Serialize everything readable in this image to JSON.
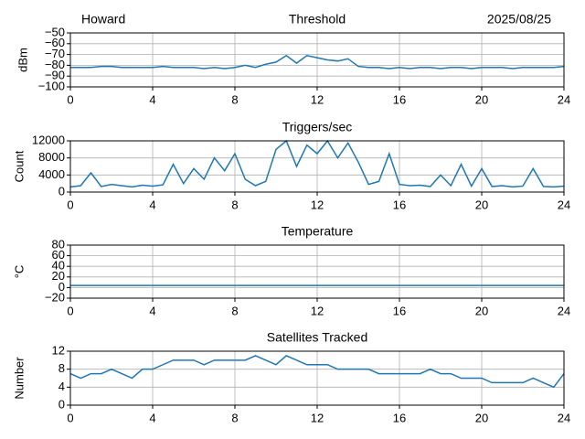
{
  "chart_data": [
    {
      "type": "line",
      "location": "Howard",
      "title": "Threshold",
      "date": "2025/08/25",
      "ylabel": "dBm",
      "color": "#1f77b4",
      "grid": true,
      "x": [
        0,
        0.5,
        1,
        1.5,
        2,
        2.5,
        3,
        3.5,
        4,
        4.5,
        5,
        5.5,
        6,
        6.5,
        7,
        7.5,
        8,
        8.5,
        9,
        9.5,
        10,
        10.5,
        11,
        11.5,
        12,
        12.5,
        13,
        13.5,
        14,
        14.5,
        15,
        15.5,
        16,
        16.5,
        17,
        17.5,
        18,
        18.5,
        19,
        19.5,
        20,
        20.5,
        21,
        21.5,
        22,
        22.5,
        23,
        23.5,
        24
      ],
      "values": [
        -82,
        -82,
        -82,
        -81,
        -81,
        -82,
        -82,
        -82,
        -82,
        -81,
        -82,
        -82,
        -82,
        -83,
        -82,
        -83,
        -82,
        -80,
        -82,
        -79,
        -77,
        -71,
        -78,
        -71,
        -73,
        -75,
        -76,
        -74,
        -81,
        -82,
        -82,
        -83,
        -82,
        -83,
        -82,
        -82,
        -83,
        -82,
        -82,
        -83,
        -82,
        -82,
        -82,
        -83,
        -82,
        -82,
        -82,
        -82,
        -81
      ],
      "xlim": [
        0,
        24
      ],
      "xticks": [
        0,
        4,
        8,
        12,
        16,
        20,
        24
      ],
      "ylim": [
        -100,
        -50
      ],
      "yticks": [
        {
          "value": -100,
          "label": "−100"
        },
        {
          "value": -90,
          "label": "−90"
        },
        {
          "value": -80,
          "label": "−80"
        },
        {
          "value": -70,
          "label": "−70"
        },
        {
          "value": -60,
          "label": "−60"
        },
        {
          "value": -50,
          "label": "−50"
        }
      ]
    },
    {
      "type": "line",
      "title": "Triggers/sec",
      "ylabel": "Count",
      "color": "#1f77b4",
      "grid": true,
      "x": [
        0,
        0.5,
        1,
        1.5,
        2,
        2.5,
        3,
        3.5,
        4,
        4.5,
        5,
        5.5,
        6,
        6.5,
        7,
        7.5,
        8,
        8.5,
        9,
        9.5,
        10,
        10.5,
        11,
        11.5,
        12,
        12.5,
        13,
        13.5,
        14,
        14.5,
        15,
        15.5,
        16,
        16.5,
        17,
        17.5,
        18,
        18.5,
        19,
        19.5,
        20,
        20.5,
        21,
        21.5,
        22,
        22.5,
        23,
        23.5,
        24
      ],
      "values": [
        1200,
        1500,
        4500,
        1300,
        1800,
        1500,
        1200,
        1600,
        1400,
        1700,
        6500,
        2000,
        5500,
        3000,
        8000,
        5000,
        9000,
        3000,
        1500,
        2500,
        10000,
        12000,
        6000,
        11000,
        9000,
        12000,
        8000,
        11500,
        7000,
        1800,
        2500,
        9000,
        1800,
        1500,
        1600,
        1300,
        4000,
        1500,
        6500,
        1400,
        5500,
        1300,
        1500,
        1200,
        1400,
        5500,
        1300,
        1200,
        1400
      ],
      "xlim": [
        0,
        24
      ],
      "xticks": [
        0,
        4,
        8,
        12,
        16,
        20,
        24
      ],
      "ylim": [
        0,
        12000
      ],
      "yticks": [
        0,
        4000,
        8000,
        12000
      ]
    },
    {
      "type": "line",
      "title": "Temperature",
      "ylabel": "°C",
      "color": "#1f77b4",
      "grid": true,
      "x": [
        0,
        24
      ],
      "values": [
        4,
        4
      ],
      "xlim": [
        0,
        24
      ],
      "xticks": [
        0,
        4,
        8,
        12,
        16,
        20,
        24
      ],
      "ylim": [
        -20,
        80
      ],
      "yticks": [
        {
          "value": -20,
          "label": "−20"
        },
        0,
        20,
        40,
        60,
        80
      ]
    },
    {
      "type": "line",
      "title": "Satellites Tracked",
      "ylabel": "Number",
      "color": "#1f77b4",
      "grid": true,
      "x": [
        0,
        0.5,
        1,
        1.5,
        2,
        2.5,
        3,
        3.5,
        4,
        4.5,
        5,
        5.5,
        6,
        6.5,
        7,
        7.5,
        8,
        8.5,
        9,
        9.5,
        10,
        10.5,
        11,
        11.5,
        12,
        12.5,
        13,
        13.5,
        14,
        14.5,
        15,
        15.5,
        16,
        16.5,
        17,
        17.5,
        18,
        18.5,
        19,
        19.5,
        20,
        20.5,
        21,
        21.5,
        22,
        22.5,
        23,
        23.5,
        24
      ],
      "values": [
        7,
        6,
        7,
        7,
        8,
        7,
        6,
        8,
        8,
        9,
        10,
        10,
        10,
        9,
        10,
        10,
        10,
        10,
        11,
        10,
        9,
        11,
        10,
        9,
        9,
        9,
        8,
        8,
        8,
        8,
        7,
        7,
        7,
        7,
        7,
        8,
        7,
        7,
        6,
        6,
        6,
        5,
        5,
        5,
        5,
        6,
        5,
        4,
        7
      ],
      "xlim": [
        0,
        24
      ],
      "xticks": [
        0,
        4,
        8,
        12,
        16,
        20,
        24
      ],
      "ylim": [
        0,
        12
      ],
      "yticks": [
        0,
        4,
        8,
        12
      ]
    }
  ]
}
